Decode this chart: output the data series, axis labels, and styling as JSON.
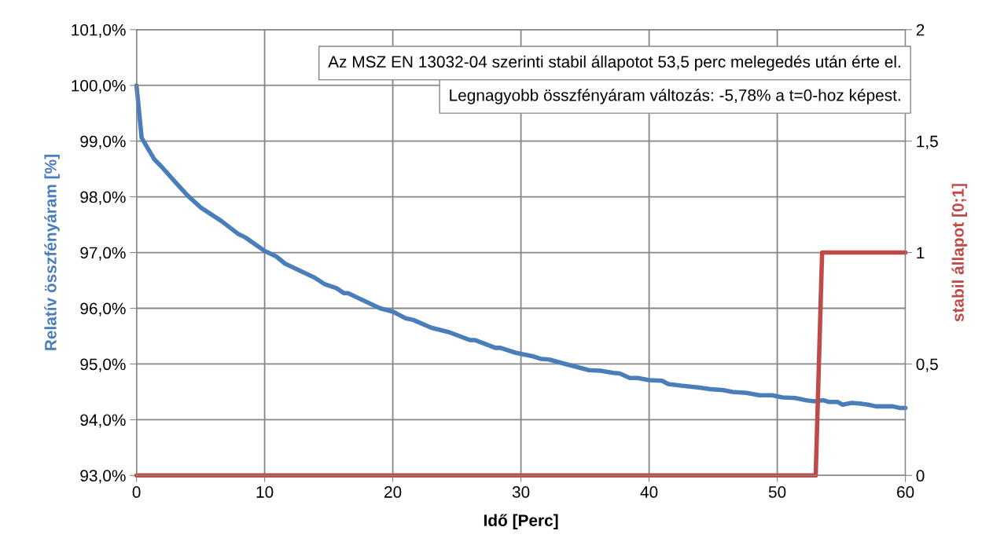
{
  "chart_data": {
    "type": "line",
    "xlabel": "Idő [Perc]",
    "ylabel": "Relatív összfényáram [%]",
    "y2label": "stabil állapot [0;1]",
    "annotations": [
      "Az MSZ EN 13032-04 szerinti stabil állapotot 53,5 perc melegedés után érte el.",
      "Legnagyobb összfényáram változás: -5,78% a t=0-hoz képest."
    ],
    "xlim": [
      0,
      60
    ],
    "xticks": [
      0,
      10,
      20,
      30,
      40,
      50,
      60
    ],
    "ylim": [
      93,
      101
    ],
    "yticks": [
      {
        "value": 93,
        "label": "93,0%"
      },
      {
        "value": 94,
        "label": "94,0%"
      },
      {
        "value": 95,
        "label": "95,0%"
      },
      {
        "value": 96,
        "label": "96,0%"
      },
      {
        "value": 97,
        "label": "97,0%"
      },
      {
        "value": 98,
        "label": "98,0%"
      },
      {
        "value": 99,
        "label": "99,0%"
      },
      {
        "value": 100,
        "label": "100,0%"
      },
      {
        "value": 101,
        "label": "101,0%"
      }
    ],
    "y2lim": [
      0,
      2
    ],
    "y2ticks": [
      0,
      {
        "value": 0.5,
        "label": "0,5"
      },
      1,
      {
        "value": 1.5,
        "label": "1,5"
      },
      2
    ],
    "grid": true,
    "marker": "none",
    "line_style": "solid",
    "series": [
      {
        "color": "#4a7ebb",
        "x": [
          0,
          0.4,
          0.8,
          1.4,
          2.0,
          3.0,
          4.0,
          5.0,
          6.6,
          7.9,
          8.5,
          10,
          10.9,
          11.6,
          13.9,
          14.7,
          15.6,
          16.2,
          16.5,
          19,
          20,
          21,
          21.6,
          23,
          24.4,
          26,
          26.4,
          28,
          28.4,
          29.6,
          30.9,
          31.6,
          32.2,
          33.3,
          35.3,
          36.2,
          37.2,
          37.7,
          38.5,
          39.1,
          40,
          41,
          41.5,
          42.5,
          43.8,
          44.7,
          45.8,
          46.5,
          47.6,
          48.6,
          49.6,
          50.4,
          51.4,
          52.2,
          52.9,
          53.6,
          54,
          54.7,
          55.1,
          55.8,
          56.4,
          57.1,
          57.7,
          59,
          59.6,
          60
        ],
        "values": [
          100,
          99.06,
          98.9,
          98.67,
          98.53,
          98.27,
          98.02,
          97.81,
          97.57,
          97.34,
          97.27,
          97.03,
          96.93,
          96.8,
          96.55,
          96.43,
          96.36,
          96.27,
          96.27,
          96,
          95.94,
          95.82,
          95.79,
          95.65,
          95.57,
          95.43,
          95.43,
          95.29,
          95.29,
          95.2,
          95.14,
          95.09,
          95.08,
          95.01,
          94.89,
          94.88,
          94.84,
          94.83,
          94.75,
          94.75,
          94.71,
          94.7,
          94.64,
          94.61,
          94.58,
          94.55,
          94.53,
          94.5,
          94.48,
          94.44,
          94.44,
          94.4,
          94.39,
          94.35,
          94.33,
          94.35,
          94.32,
          94.32,
          94.27,
          94.3,
          94.29,
          94.27,
          94.24,
          94.24,
          94.21,
          94.21
        ]
      },
      {
        "color": "#be4b48",
        "axis": "y2",
        "x": [
          0,
          53,
          53.5,
          60
        ],
        "values": [
          0,
          0,
          1,
          1
        ]
      }
    ]
  }
}
